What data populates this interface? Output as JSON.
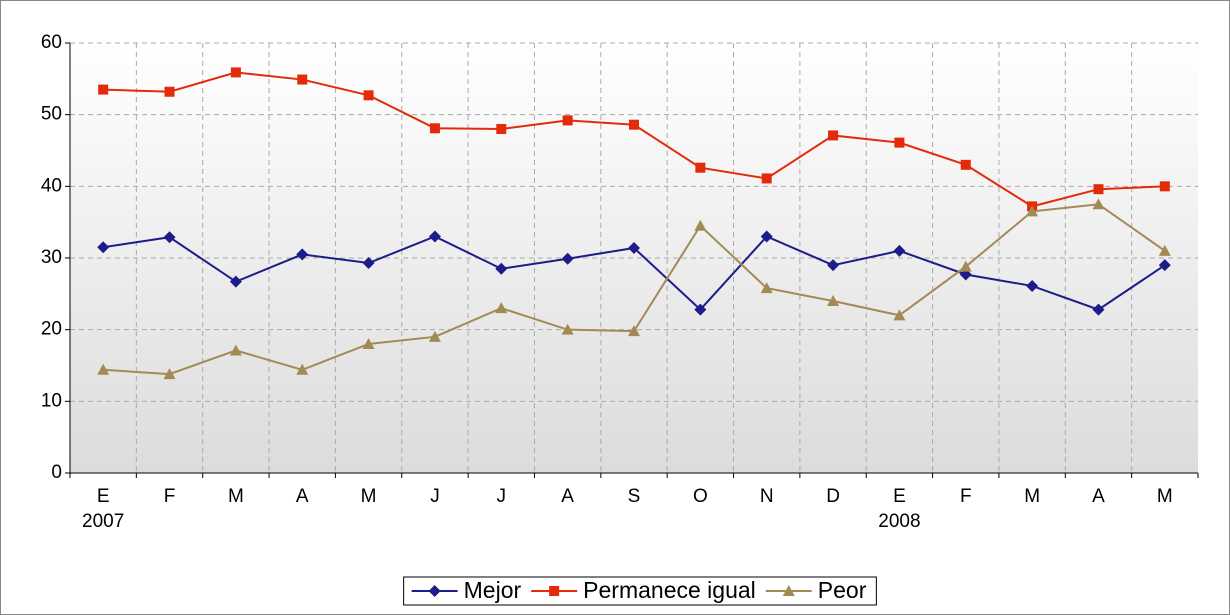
{
  "chart_data": {
    "type": "line",
    "categories": [
      "E",
      "F",
      "M",
      "A",
      "M",
      "J",
      "J",
      "A",
      "S",
      "O",
      "N",
      "D",
      "E",
      "F",
      "M",
      "A",
      "M"
    ],
    "year_labels": [
      "2007",
      null,
      null,
      null,
      null,
      null,
      null,
      null,
      null,
      null,
      null,
      null,
      "2008",
      null,
      null,
      null,
      null
    ],
    "series": [
      {
        "name": "Mejor",
        "color": "#1c1c8a",
        "marker": "diamond",
        "values": [
          31.5,
          32.9,
          26.7,
          30.5,
          29.3,
          33.0,
          28.5,
          29.9,
          31.4,
          22.8,
          33.0,
          29.0,
          31.0,
          27.7,
          26.1,
          22.8,
          29.0
        ]
      },
      {
        "name": "Permanece igual",
        "color": "#e32b0a",
        "marker": "square",
        "values": [
          53.5,
          53.2,
          55.9,
          54.9,
          52.7,
          48.1,
          48.0,
          49.2,
          48.6,
          42.6,
          41.1,
          47.1,
          46.1,
          43.0,
          37.2,
          39.6,
          40.0
        ]
      },
      {
        "name": "Peor",
        "color": "#a38a55",
        "marker": "triangle",
        "values": [
          14.4,
          13.8,
          17.1,
          14.4,
          18.0,
          19.0,
          23.0,
          20.0,
          19.8,
          34.5,
          25.8,
          24.0,
          22.0,
          28.8,
          36.5,
          37.5,
          31.0
        ]
      }
    ],
    "ylim": [
      0,
      60
    ],
    "yticks": [
      0,
      10,
      20,
      30,
      40,
      50,
      60
    ],
    "grid": true,
    "legend": "bottom"
  }
}
